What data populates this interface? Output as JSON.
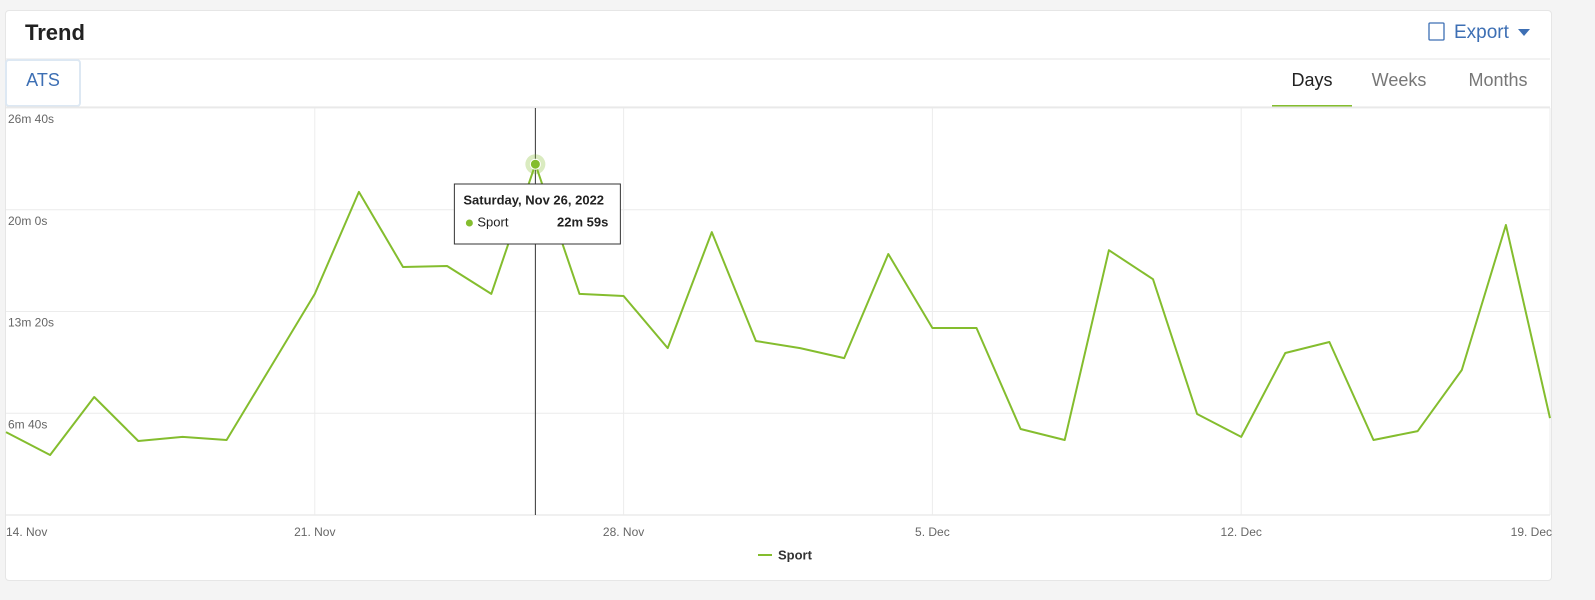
{
  "header": {
    "title": "Trend",
    "export": "Export"
  },
  "filter": {
    "label": "ATS"
  },
  "tabs": [
    "Days",
    "Weeks",
    "Months"
  ],
  "chart_data": {
    "type": "line",
    "categories": [
      "14. Nov",
      null,
      null,
      null,
      null,
      null,
      null,
      "21. Nov",
      null,
      null,
      null,
      null,
      null,
      null,
      "28. Nov",
      null,
      null,
      null,
      null,
      null,
      null,
      "5. Dec",
      null,
      null,
      null,
      null,
      null,
      null,
      "12. Dec",
      null,
      null,
      null,
      null,
      null,
      null,
      "19. Dec"
    ],
    "series": [
      {
        "name": "Sport",
        "color": "#84bd2e",
        "values": [
          326,
          236,
          464,
          291,
          307,
          295,
          582,
          869,
          1270,
          975,
          979,
          869,
          1379,
          869,
          861,
          656,
          1112,
          684,
          656,
          617,
          1026,
          735,
          735,
          338,
          295,
          1041,
          927,
          397,
          307,
          637,
          680,
          295,
          330,
          570,
          1140,
          381
        ],
        "value_labels": [
          null,
          null,
          null,
          null,
          null,
          null,
          null,
          null,
          null,
          null,
          null,
          null,
          "22m 59s",
          null,
          null,
          null,
          null,
          null,
          null,
          null,
          null,
          null,
          null,
          null,
          null,
          null,
          null,
          null,
          null,
          null,
          null,
          null,
          null,
          null,
          null,
          null
        ]
      }
    ],
    "ylim": [
      0,
      1600
    ],
    "yticks": [
      {
        "value": 400,
        "label": "6m 40s"
      },
      {
        "value": 800,
        "label": "13m 20s"
      },
      {
        "value": 1200,
        "label": "20m 0s"
      },
      {
        "value": 1600,
        "label": "26m 40s"
      }
    ],
    "grid": true,
    "tooltip": {
      "title": "Saturday, Nov 26, 2022",
      "index": 12
    }
  }
}
